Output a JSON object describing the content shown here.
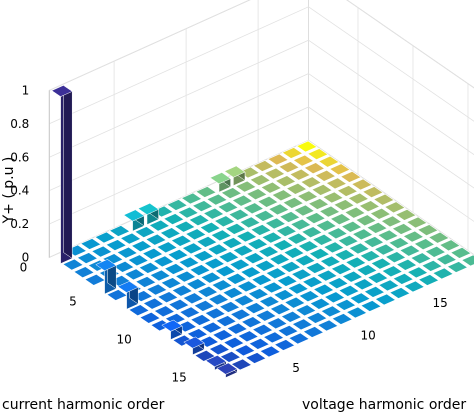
{
  "chart_data": {
    "type": "3d-bar",
    "title": "",
    "xlabel": "voltage harmonic order",
    "ylabel": "current harmonic order",
    "zlabel": "Y+ ( p.u )",
    "x_ticks": [
      5,
      10,
      15
    ],
    "y_ticks": [
      0,
      5,
      10,
      15
    ],
    "z_ticks": [
      0,
      0.2,
      0.4,
      0.6,
      0.8,
      1
    ],
    "x_range": [
      1,
      18
    ],
    "y_range": [
      1,
      16
    ],
    "zlim": [
      0,
      1
    ],
    "grid": true,
    "colormap": "parula",
    "bars": [
      {
        "current_order": 1,
        "voltage_order": 1,
        "value": 1.0
      },
      {
        "current_order": 1,
        "voltage_order": 6,
        "value": 0.06
      },
      {
        "current_order": 1,
        "voltage_order": 7,
        "value": 0.06
      },
      {
        "current_order": 1,
        "voltage_order": 12,
        "value": 0.05
      },
      {
        "current_order": 1,
        "voltage_order": 13,
        "value": 0.05
      },
      {
        "current_order": 5,
        "voltage_order": 1,
        "value": 0.14
      },
      {
        "current_order": 7,
        "voltage_order": 1,
        "value": 0.1
      },
      {
        "current_order": 11,
        "voltage_order": 1,
        "value": 0.05
      },
      {
        "current_order": 13,
        "voltage_order": 1,
        "value": 0.04
      },
      {
        "current_order": 15,
        "voltage_order": 1,
        "value": 0.02
      },
      {
        "current_order": 16,
        "voltage_order": 1,
        "value": 0.02
      }
    ]
  }
}
